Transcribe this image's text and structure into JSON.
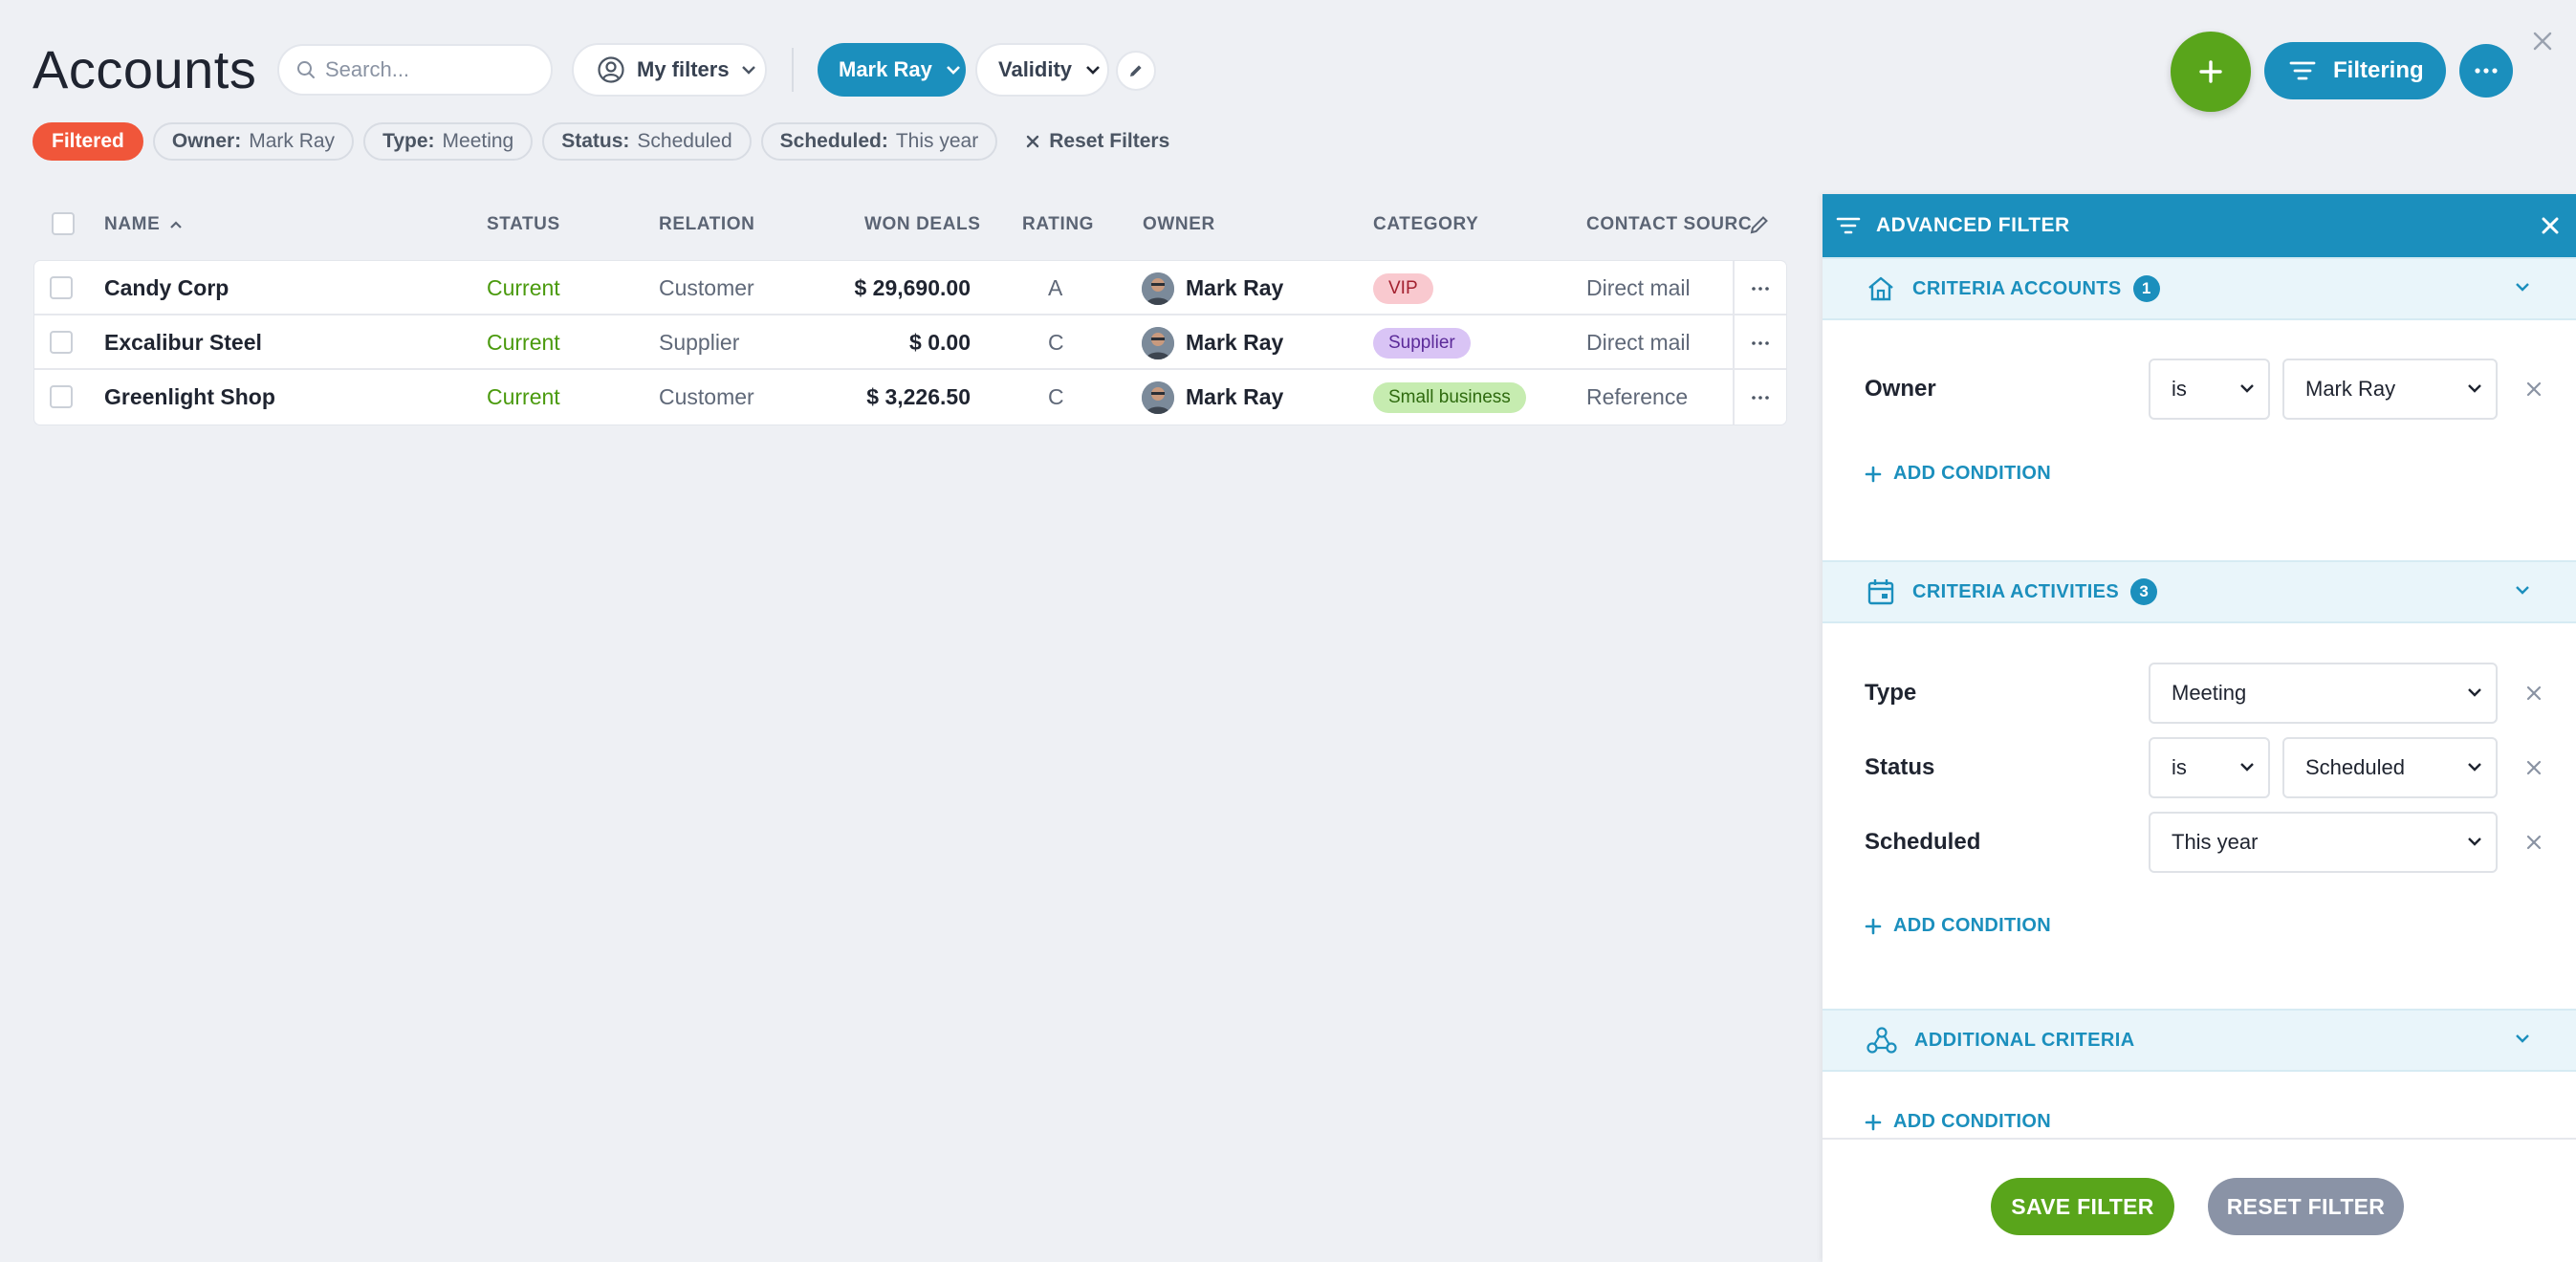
{
  "header": {
    "title": "Accounts",
    "search_placeholder": "Search...",
    "my_filters_label": "My filters",
    "owner_filter_label": "Mark Ray",
    "validity_label": "Validity",
    "filtering_label": "Filtering"
  },
  "chips": {
    "filtered": "Filtered",
    "owner_key": "Owner:",
    "owner_val": "Mark Ray",
    "type_key": "Type:",
    "type_val": "Meeting",
    "status_key": "Status:",
    "status_val": "Scheduled",
    "scheduled_key": "Scheduled:",
    "scheduled_val": "This year",
    "reset": "Reset Filters"
  },
  "table": {
    "columns": {
      "name": "NAME",
      "status": "STATUS",
      "relation": "RELATION",
      "won_deals": "WON DEALS",
      "rating": "RATING",
      "owner": "OWNER",
      "category": "CATEGORY",
      "contact_source": "CONTACT SOURC"
    },
    "rows": [
      {
        "name": "Candy Corp",
        "status": "Current",
        "relation": "Customer",
        "won": "$ 29,690.00",
        "rating": "A",
        "owner": "Mark Ray",
        "category": "VIP",
        "source": "Direct mail"
      },
      {
        "name": "Excalibur Steel",
        "status": "Current",
        "relation": "Supplier",
        "won": "$ 0.00",
        "rating": "C",
        "owner": "Mark Ray",
        "category": "Supplier",
        "source": "Direct mail"
      },
      {
        "name": "Greenlight Shop",
        "status": "Current",
        "relation": "Customer",
        "won": "$ 3,226.50",
        "rating": "C",
        "owner": "Mark Ray",
        "category": "Small business",
        "source": "Reference"
      }
    ]
  },
  "panel": {
    "title": "ADVANCED FILTER",
    "accounts": {
      "label": "CRITERIA ACCOUNTS",
      "count": "1",
      "owner_label": "Owner",
      "owner_op": "is",
      "owner_value": "Mark Ray"
    },
    "activities": {
      "label": "CRITERIA ACTIVITIES",
      "count": "3",
      "type_label": "Type",
      "type_value": "Meeting",
      "status_label": "Status",
      "status_op": "is",
      "status_value": "Scheduled",
      "scheduled_label": "Scheduled",
      "scheduled_value": "This year"
    },
    "additional": {
      "label": "ADDITIONAL CRITERIA"
    },
    "add_condition": "ADD CONDITION",
    "save": "SAVE FILTER",
    "reset": "RESET FILTER"
  },
  "colors": {
    "accent": "#1b8fbd",
    "add_green": "#59a51b",
    "filtered_chip": "#f0563a",
    "status_green": "#4a9a0d",
    "badge_vip": "#f9c9cf",
    "badge_supplier": "#d9c4f5",
    "badge_small_business": "#c6ecb0",
    "reset_button": "#8a93a6"
  }
}
